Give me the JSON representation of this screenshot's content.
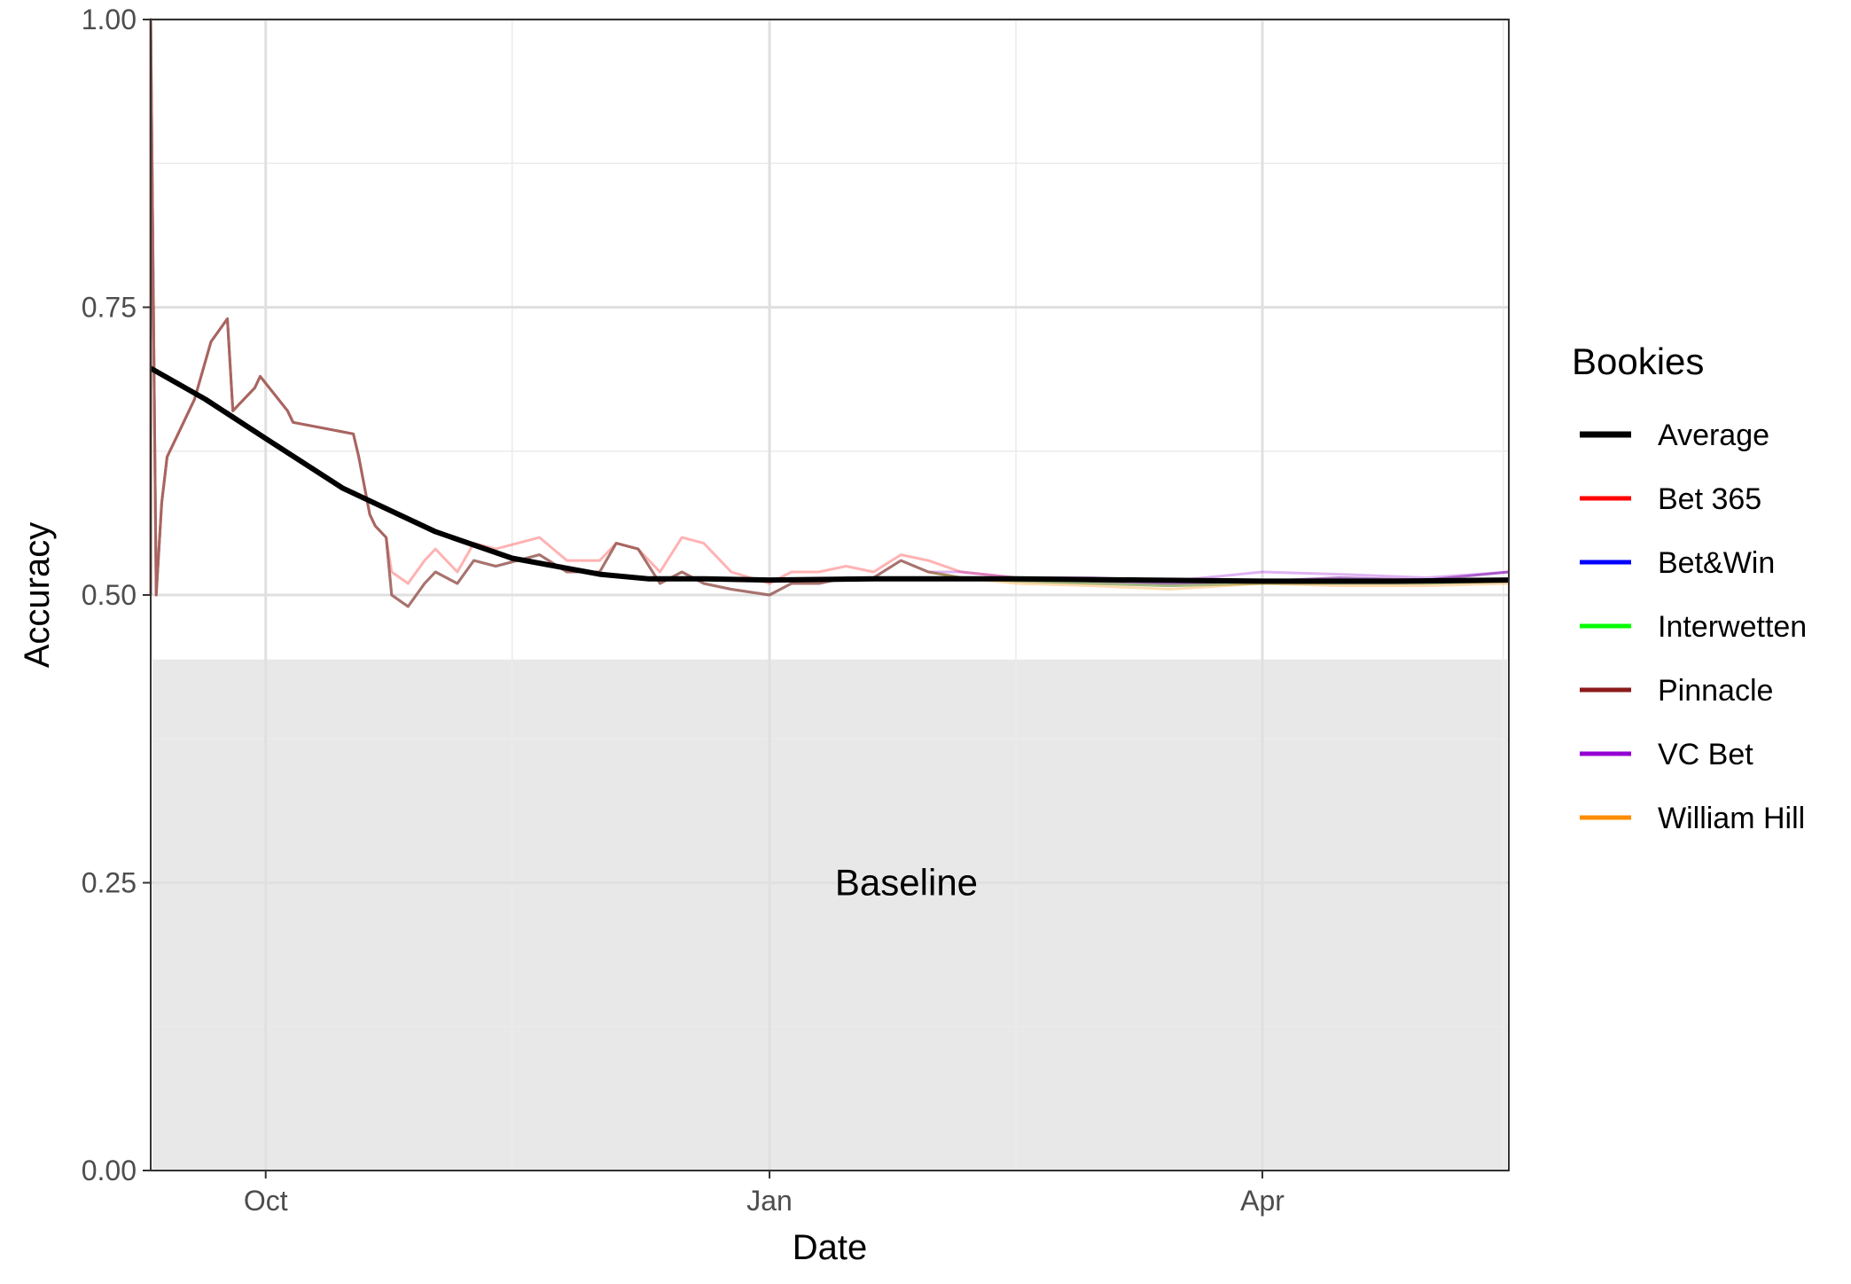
{
  "chart_data": {
    "type": "line",
    "xlabel": "Date",
    "ylabel": "Accuracy",
    "xlim": [
      "2018-09-10",
      "2019-05-16"
    ],
    "ylim": [
      0,
      1
    ],
    "x_ticks": [
      {
        "date": "2018-10-01",
        "label": "Oct"
      },
      {
        "date": "2019-01-01",
        "label": "Jan"
      },
      {
        "date": "2019-04-01",
        "label": "Apr"
      }
    ],
    "x_minor_dates": [
      "2018-11-15",
      "2019-02-15",
      "2019-05-15"
    ],
    "y_ticks": [
      {
        "value": 0,
        "label": "0.00"
      },
      {
        "value": 0.25,
        "label": "0.25"
      },
      {
        "value": 0.5,
        "label": "0.50"
      },
      {
        "value": 0.75,
        "label": "0.75"
      },
      {
        "value": 1,
        "label": "1.00"
      }
    ],
    "y_minor": [
      0.125,
      0.375,
      0.625,
      0.875
    ],
    "grid": true,
    "baseline": {
      "label": "Baseline",
      "value": 0.444,
      "label_at": [
        "2019-01-26",
        0.25
      ]
    },
    "legend": {
      "title": "Bookies",
      "position": "right"
    },
    "colors": {
      "Average": "#000000",
      "Bet 365": "#ff0000",
      "Bet&Win": "#0000ff",
      "Interwetten": "#00ff00",
      "Pinnacle": "#8b1a1a",
      "VC Bet": "#9400d3",
      "William Hill": "#ff8c00"
    },
    "series": [
      {
        "name": "Average",
        "x": [
          "2018-09-10",
          "2018-09-20",
          "2018-10-01",
          "2018-10-15",
          "2018-11-01",
          "2018-11-15",
          "2018-12-01",
          "2018-12-10",
          "2018-12-20",
          "2019-01-01",
          "2019-01-20",
          "2019-02-15",
          "2019-03-10",
          "2019-04-01",
          "2019-04-25",
          "2019-05-16"
        ],
        "y": [
          0.697,
          0.67,
          0.636,
          0.593,
          0.555,
          0.532,
          0.518,
          0.514,
          0.514,
          0.513,
          0.514,
          0.514,
          0.513,
          0.512,
          0.512,
          0.513
        ]
      },
      {
        "name": "Bet 365",
        "x": [
          "2018-09-10",
          "2018-09-10",
          "2018-09-11",
          "2018-09-12",
          "2018-09-13",
          "2018-09-15",
          "2018-09-18",
          "2018-09-21",
          "2018-09-24",
          "2018-09-25",
          "2018-09-29",
          "2018-09-30",
          "2018-10-05",
          "2018-10-06",
          "2018-10-17",
          "2018-10-18",
          "2018-10-20",
          "2018-10-21",
          "2018-10-23",
          "2018-10-24",
          "2018-10-27",
          "2018-10-30",
          "2018-11-01",
          "2018-11-05",
          "2018-11-08",
          "2018-11-12",
          "2018-11-16",
          "2018-11-20",
          "2018-11-25",
          "2018-12-01",
          "2018-12-04",
          "2018-12-08",
          "2018-12-12",
          "2018-12-16",
          "2018-12-20",
          "2018-12-25",
          "2019-01-01",
          "2019-01-05",
          "2019-01-10",
          "2019-01-15",
          "2019-01-20",
          "2019-01-25",
          "2019-01-30",
          "2019-02-05",
          "2019-02-15",
          "2019-03-01",
          "2019-03-15",
          "2019-04-01",
          "2019-04-15",
          "2019-05-01",
          "2019-05-16"
        ],
        "y": [
          0.5,
          1.0,
          0.5,
          0.58,
          0.62,
          0.64,
          0.67,
          0.72,
          0.74,
          0.66,
          0.68,
          0.69,
          0.66,
          0.65,
          0.64,
          0.62,
          0.57,
          0.56,
          0.55,
          0.52,
          0.51,
          0.53,
          0.54,
          0.52,
          0.545,
          0.54,
          0.545,
          0.55,
          0.53,
          0.53,
          0.545,
          0.54,
          0.52,
          0.55,
          0.545,
          0.52,
          0.51,
          0.52,
          0.52,
          0.525,
          0.52,
          0.535,
          0.53,
          0.52,
          0.515,
          0.512,
          0.51,
          0.512,
          0.515,
          0.513,
          0.52
        ]
      },
      {
        "name": "Bet&Win",
        "x": [
          "2018-09-10",
          "2018-09-10",
          "2018-09-11",
          "2018-09-12",
          "2018-09-13",
          "2018-09-15",
          "2018-09-18",
          "2018-09-21",
          "2018-09-24",
          "2018-09-25",
          "2018-09-29",
          "2018-09-30",
          "2018-10-05",
          "2018-10-06",
          "2018-10-17",
          "2018-10-18",
          "2018-10-20",
          "2018-10-21",
          "2018-10-23",
          "2018-10-24",
          "2018-10-27",
          "2018-10-30",
          "2018-11-01",
          "2018-11-05",
          "2018-11-08",
          "2018-11-12",
          "2018-11-16",
          "2018-11-20",
          "2018-11-25",
          "2018-12-01",
          "2018-12-04",
          "2018-12-08",
          "2018-12-12",
          "2018-12-16",
          "2018-12-20",
          "2018-12-25",
          "2019-01-01",
          "2019-01-05",
          "2019-01-10",
          "2019-01-15",
          "2019-01-20",
          "2019-01-25",
          "2019-01-30",
          "2019-02-05",
          "2019-02-15",
          "2019-03-01",
          "2019-03-15",
          "2019-04-01",
          "2019-04-15",
          "2019-05-01",
          "2019-05-16"
        ],
        "y": [
          0.5,
          1.0,
          0.5,
          0.58,
          0.62,
          0.64,
          0.67,
          0.72,
          0.74,
          0.66,
          0.68,
          0.69,
          0.66,
          0.65,
          0.64,
          0.62,
          0.57,
          0.56,
          0.55,
          0.5,
          0.49,
          0.51,
          0.52,
          0.51,
          0.53,
          0.525,
          0.53,
          0.535,
          0.52,
          0.52,
          0.545,
          0.54,
          0.51,
          0.52,
          0.51,
          0.505,
          0.5,
          0.51,
          0.51,
          0.515,
          0.515,
          0.53,
          0.52,
          0.515,
          0.515,
          0.512,
          0.51,
          0.512,
          0.515,
          0.513,
          0.52
        ]
      },
      {
        "name": "Interwetten",
        "x": [
          "2018-09-10",
          "2018-09-10",
          "2018-09-11",
          "2018-09-12",
          "2018-09-13",
          "2018-09-15",
          "2018-09-18",
          "2018-09-21",
          "2018-09-24",
          "2018-09-25",
          "2018-09-29",
          "2018-09-30",
          "2018-10-05",
          "2018-10-06",
          "2018-10-17",
          "2018-10-18",
          "2018-10-20",
          "2018-10-21",
          "2018-10-23",
          "2018-10-24",
          "2018-10-27",
          "2018-10-30",
          "2018-11-01",
          "2018-11-05",
          "2018-11-08",
          "2018-11-12",
          "2018-11-16",
          "2018-11-20",
          "2018-11-25",
          "2018-12-01",
          "2018-12-04",
          "2018-12-08",
          "2018-12-12",
          "2018-12-16",
          "2018-12-20",
          "2018-12-25",
          "2019-01-01",
          "2019-01-05",
          "2019-01-10",
          "2019-01-15",
          "2019-01-20",
          "2019-01-25",
          "2019-01-30",
          "2019-02-05",
          "2019-02-15",
          "2019-03-01",
          "2019-03-15",
          "2019-04-01",
          "2019-04-15",
          "2019-05-01",
          "2019-05-16"
        ],
        "y": [
          0.5,
          1.0,
          0.5,
          0.58,
          0.62,
          0.64,
          0.67,
          0.72,
          0.74,
          0.66,
          0.68,
          0.69,
          0.66,
          0.65,
          0.64,
          0.62,
          0.57,
          0.56,
          0.55,
          0.5,
          0.49,
          0.51,
          0.52,
          0.51,
          0.53,
          0.525,
          0.53,
          0.535,
          0.52,
          0.52,
          0.545,
          0.54,
          0.51,
          0.52,
          0.51,
          0.505,
          0.5,
          0.51,
          0.51,
          0.515,
          0.515,
          0.53,
          0.52,
          0.515,
          0.512,
          0.51,
          0.508,
          0.51,
          0.51,
          0.51,
          0.512
        ]
      },
      {
        "name": "Pinnacle",
        "x": [
          "2018-09-10",
          "2018-09-10",
          "2018-09-11",
          "2018-09-12",
          "2018-09-13",
          "2018-09-15",
          "2018-09-18",
          "2018-09-21",
          "2018-09-24",
          "2018-09-25",
          "2018-09-29",
          "2018-09-30",
          "2018-10-05",
          "2018-10-06",
          "2018-10-17",
          "2018-10-18",
          "2018-10-20",
          "2018-10-21",
          "2018-10-23",
          "2018-10-24",
          "2018-10-27",
          "2018-10-30",
          "2018-11-01",
          "2018-11-05",
          "2018-11-08",
          "2018-11-12",
          "2018-11-16",
          "2018-11-20",
          "2018-11-25",
          "2018-12-01",
          "2018-12-04",
          "2018-12-08",
          "2018-12-12",
          "2018-12-16",
          "2018-12-20",
          "2018-12-25",
          "2019-01-01",
          "2019-01-05",
          "2019-01-10",
          "2019-01-15",
          "2019-01-20",
          "2019-01-25",
          "2019-01-30",
          "2019-02-05",
          "2019-02-15",
          "2019-03-01",
          "2019-03-15",
          "2019-04-01",
          "2019-04-15",
          "2019-05-01",
          "2019-05-16"
        ],
        "y": [
          0.5,
          1.0,
          0.5,
          0.58,
          0.62,
          0.64,
          0.67,
          0.72,
          0.74,
          0.66,
          0.68,
          0.69,
          0.66,
          0.65,
          0.64,
          0.62,
          0.57,
          0.56,
          0.55,
          0.5,
          0.49,
          0.51,
          0.52,
          0.51,
          0.53,
          0.525,
          0.53,
          0.535,
          0.52,
          0.52,
          0.545,
          0.54,
          0.51,
          0.52,
          0.51,
          0.505,
          0.5,
          0.51,
          0.51,
          0.515,
          0.515,
          0.53,
          0.52,
          0.515,
          0.512,
          0.51,
          0.508,
          0.51,
          0.51,
          0.51,
          0.512
        ]
      },
      {
        "name": "VC Bet",
        "x": [
          "2018-09-10",
          "2018-09-10",
          "2018-09-11",
          "2018-09-12",
          "2018-09-13",
          "2018-09-15",
          "2018-09-18",
          "2018-09-21",
          "2018-09-24",
          "2018-09-25",
          "2018-09-29",
          "2018-09-30",
          "2018-10-05",
          "2018-10-06",
          "2018-10-17",
          "2018-10-18",
          "2018-10-20",
          "2018-10-21",
          "2018-10-23",
          "2018-10-24",
          "2018-10-27",
          "2018-10-30",
          "2018-11-01",
          "2018-11-05",
          "2018-11-08",
          "2018-11-12",
          "2018-11-16",
          "2018-11-20",
          "2018-11-25",
          "2018-12-01",
          "2018-12-04",
          "2018-12-08",
          "2018-12-12",
          "2018-12-16",
          "2018-12-20",
          "2018-12-25",
          "2019-01-01",
          "2019-01-05",
          "2019-01-10",
          "2019-01-15",
          "2019-01-20",
          "2019-01-25",
          "2019-01-30",
          "2019-02-05",
          "2019-02-15",
          "2019-03-01",
          "2019-03-15",
          "2019-04-01",
          "2019-04-15",
          "2019-05-01",
          "2019-05-16"
        ],
        "y": [
          0.5,
          1.0,
          0.5,
          0.58,
          0.62,
          0.64,
          0.67,
          0.72,
          0.74,
          0.66,
          0.68,
          0.69,
          0.66,
          0.65,
          0.64,
          0.62,
          0.57,
          0.56,
          0.55,
          0.5,
          0.49,
          0.51,
          0.52,
          0.51,
          0.53,
          0.525,
          0.53,
          0.535,
          0.52,
          0.52,
          0.545,
          0.54,
          0.51,
          0.52,
          0.51,
          0.505,
          0.5,
          0.51,
          0.51,
          0.515,
          0.515,
          0.53,
          0.52,
          0.52,
          0.515,
          0.515,
          0.512,
          0.52,
          0.518,
          0.515,
          0.52
        ]
      },
      {
        "name": "William Hill",
        "x": [
          "2018-09-10",
          "2018-09-10",
          "2018-09-11",
          "2018-09-12",
          "2018-09-13",
          "2018-09-15",
          "2018-09-18",
          "2018-09-21",
          "2018-09-24",
          "2018-09-25",
          "2018-09-29",
          "2018-09-30",
          "2018-10-05",
          "2018-10-06",
          "2018-10-17",
          "2018-10-18",
          "2018-10-20",
          "2018-10-21",
          "2018-10-23",
          "2018-10-24",
          "2018-10-27",
          "2018-10-30",
          "2018-11-01",
          "2018-11-05",
          "2018-11-08",
          "2018-11-12",
          "2018-11-16",
          "2018-11-20",
          "2018-11-25",
          "2018-12-01",
          "2018-12-04",
          "2018-12-08",
          "2018-12-12",
          "2018-12-16",
          "2018-12-20",
          "2018-12-25",
          "2019-01-01",
          "2019-01-05",
          "2019-01-10",
          "2019-01-15",
          "2019-01-20",
          "2019-01-25",
          "2019-01-30",
          "2019-02-05",
          "2019-02-15",
          "2019-03-01",
          "2019-03-15",
          "2019-04-01",
          "2019-04-15",
          "2019-05-01",
          "2019-05-16"
        ],
        "y": [
          0.5,
          1.0,
          0.5,
          0.58,
          0.62,
          0.64,
          0.67,
          0.72,
          0.74,
          0.66,
          0.68,
          0.69,
          0.66,
          0.65,
          0.64,
          0.62,
          0.57,
          0.56,
          0.55,
          0.5,
          0.49,
          0.51,
          0.52,
          0.51,
          0.53,
          0.525,
          0.53,
          0.535,
          0.52,
          0.52,
          0.545,
          0.54,
          0.51,
          0.52,
          0.51,
          0.505,
          0.5,
          0.51,
          0.51,
          0.515,
          0.515,
          0.53,
          0.52,
          0.515,
          0.51,
          0.508,
          0.505,
          0.51,
          0.508,
          0.508,
          0.51
        ]
      }
    ]
  }
}
